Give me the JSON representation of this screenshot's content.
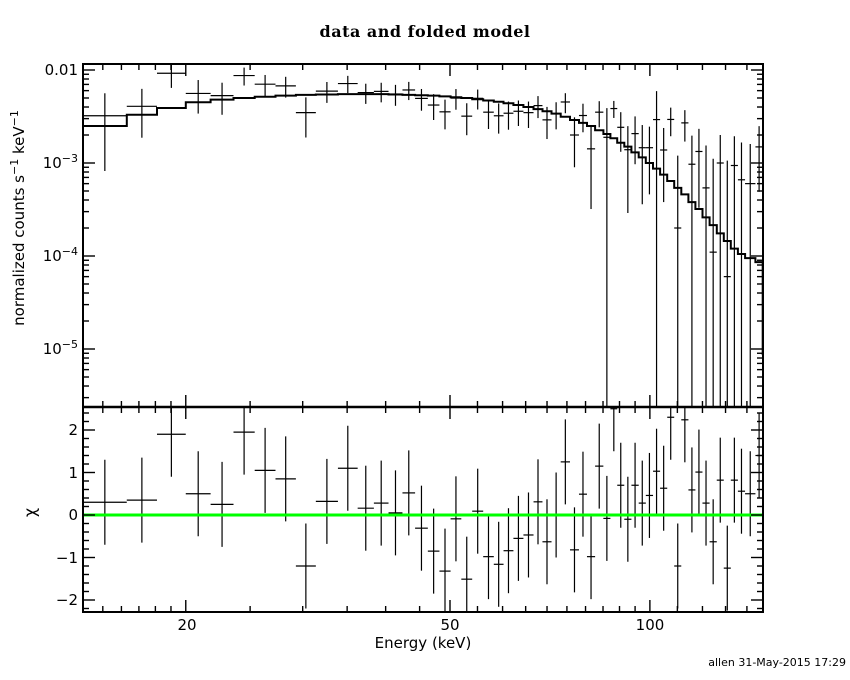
{
  "title": "data and folded model",
  "footer": {
    "credit": "allen 31-May-2015 17:29"
  },
  "colors": {
    "foreground": "#000000",
    "background": "#ffffff",
    "model_line": "#000000",
    "zero_line": "#00ff00"
  },
  "axes": {
    "x_label": "Energy (keV)",
    "x_tick_labels": [
      "20",
      "50",
      "100"
    ],
    "y1_label": {
      "part1": "normalized counts s",
      "sup1": "−1",
      "part2": " keV",
      "sup2": "−1"
    },
    "y1_tick_labels": [
      {
        "base": "0.01",
        "exp": ""
      },
      {
        "base": "10",
        "exp": "−3"
      },
      {
        "base": "10",
        "exp": "−4"
      },
      {
        "base": "10",
        "exp": "−5"
      }
    ],
    "y2_label": "χ",
    "y2_tick_labels": [
      "2",
      "1",
      "0",
      "−1",
      "−2"
    ]
  },
  "chart_data": [
    {
      "type": "scatter",
      "name": "data and folded model",
      "x_scale": "log",
      "y_scale": "log",
      "xlabel": "Energy (keV)",
      "ylabel": "normalized counts s^-1 keV^-1",
      "xlim": [
        14.0,
        147.9
      ],
      "ylim": [
        2.4e-06,
        0.0113
      ],
      "x_ticks_major": [
        20,
        50,
        100
      ],
      "x_ticks_minor": [
        15,
        16,
        17,
        18,
        19,
        25,
        30,
        35,
        40,
        45,
        55,
        60,
        65,
        70,
        75,
        80,
        85,
        90,
        95,
        110,
        120,
        130,
        140
      ],
      "y_ticks_major": [
        0.01,
        0.001,
        0.0001,
        1e-05
      ],
      "y_minor_mantissas": [
        2,
        3,
        4,
        5,
        6,
        7,
        8,
        9
      ],
      "legend": "off",
      "grid": "off",
      "series": [
        {
          "name": "data",
          "style": "crosses-with-errors"
        },
        {
          "name": "folded model",
          "style": "stepped-histogram"
        }
      ],
      "model_end_drop_to": 8.6e-06,
      "bins": {
        "e_lo": [
          14.0,
          16.3,
          18.1,
          20.0,
          21.8,
          23.6,
          25.4,
          27.3,
          29.3,
          31.4,
          33.9,
          36.3,
          38.4,
          40.4,
          42.4,
          44.3,
          46.3,
          48.2,
          50.1,
          52.0,
          54.0,
          56.1,
          58.2,
          60.2,
          62.3,
          64.5,
          66.8,
          68.9,
          71.1,
          73.4,
          75.8,
          78.2,
          80.4,
          82.7,
          85.1,
          87.2,
          89.3,
          91.5,
          93.8,
          96.2,
          98.6,
          101.1,
          103.6,
          106.2,
          108.8,
          111.5,
          114.3,
          117.1,
          120.0,
          123.0,
          126.1,
          129.2,
          132.4,
          135.7,
          139.1,
          144.2
        ],
        "e_hi": [
          16.3,
          18.1,
          20.0,
          21.8,
          23.6,
          25.4,
          27.3,
          29.3,
          31.4,
          33.9,
          36.3,
          38.4,
          40.4,
          42.4,
          44.3,
          46.3,
          48.2,
          50.1,
          52.0,
          54.0,
          56.1,
          58.2,
          60.2,
          62.3,
          64.5,
          66.8,
          68.9,
          71.1,
          73.4,
          75.8,
          78.2,
          80.4,
          82.7,
          85.1,
          87.2,
          89.3,
          91.5,
          93.8,
          96.2,
          98.6,
          101.1,
          103.6,
          106.2,
          108.8,
          111.5,
          114.3,
          117.1,
          120.0,
          123.0,
          126.1,
          129.2,
          132.4,
          135.7,
          139.1,
          144.2,
          147.9
        ],
        "rate": [
          0.00322,
          0.00407,
          0.00922,
          0.0056,
          0.0053,
          0.00871,
          0.00704,
          0.00675,
          0.00348,
          0.00593,
          0.00715,
          0.00572,
          0.00589,
          0.00552,
          0.0061,
          0.00495,
          0.0042,
          0.00355,
          0.00499,
          0.00319,
          0.00496,
          0.00352,
          0.00322,
          0.00343,
          0.0036,
          0.00348,
          0.00414,
          0.00291,
          0.0034,
          0.00453,
          0.002,
          0.00324,
          0.00142,
          0.00352,
          0.00189,
          0.00385,
          0.00242,
          0.00139,
          0.00207,
          0.00146,
          0.00146,
          0.00293,
          0.00138,
          0.00294,
          0.0002,
          0.0027,
          0.00097,
          0.00133,
          0.00054,
          0.00011,
          0.001,
          6e-05,
          0.00094,
          0.00066,
          0.0006,
          0.00149
        ],
        "rate_err": [
          0.0024,
          0.0022,
          0.0028,
          0.0022,
          0.002,
          0.0019,
          0.0018,
          0.0017,
          0.0016,
          0.0015,
          0.0015,
          0.0014,
          0.0014,
          0.0014,
          0.00135,
          0.0013,
          0.0013,
          0.00125,
          0.00125,
          0.0012,
          0.0012,
          0.0012,
          0.00115,
          0.00115,
          0.0011,
          0.0011,
          0.0011,
          0.0011,
          0.0011,
          0.0011,
          0.0011,
          0.0011,
          0.0011,
          0.0011,
          0.002,
          0.0008,
          0.0011,
          0.0011,
          0.0011,
          0.0011,
          0.001,
          0.003,
          0.001,
          0.001,
          0.001,
          0.001,
          0.001,
          0.001,
          0.001,
          0.001,
          0.001,
          0.001,
          0.001,
          0.001,
          0.001,
          0.001
        ],
        "model": [
          0.0025,
          0.0033,
          0.0039,
          0.0045,
          0.0048,
          0.005,
          0.00515,
          0.0053,
          0.0054,
          0.00545,
          0.0055,
          0.0055,
          0.0055,
          0.00545,
          0.0054,
          0.00535,
          0.0053,
          0.0052,
          0.0051,
          0.005,
          0.00485,
          0.0047,
          0.00455,
          0.0044,
          0.0042,
          0.004,
          0.0038,
          0.0036,
          0.0034,
          0.00315,
          0.0029,
          0.0027,
          0.0025,
          0.00225,
          0.00205,
          0.00185,
          0.00165,
          0.0015,
          0.0013,
          0.00115,
          0.001,
          0.00087,
          0.00075,
          0.00064,
          0.00054,
          0.00046,
          0.00038,
          0.00032,
          0.00026,
          0.000215,
          0.000175,
          0.000145,
          0.00012,
          0.000105,
          9.5e-05,
          8.6e-05
        ]
      }
    },
    {
      "type": "scatter",
      "name": "residuals",
      "x_scale": "log",
      "xlabel": "Energy (keV)",
      "ylabel": "χ",
      "xlim": [
        14.0,
        147.9
      ],
      "ylim": [
        -2.28,
        2.54
      ],
      "y_ticks_major": [
        -2,
        -1,
        0,
        1,
        2
      ],
      "y_minor_step": 0.2,
      "zero_line_value": 0,
      "zero_line_color": "#00ff00",
      "energy_bins": "same as chart 0",
      "chi": [
        0.3,
        0.35,
        1.9,
        0.5,
        0.25,
        1.95,
        1.05,
        0.85,
        -1.2,
        0.32,
        1.1,
        0.16,
        0.28,
        0.05,
        0.52,
        -0.31,
        -0.85,
        -1.32,
        -0.09,
        -1.51,
        0.09,
        -0.98,
        -1.16,
        -0.84,
        -0.55,
        -0.47,
        0.31,
        -0.63,
        0.0,
        1.25,
        -0.82,
        0.49,
        -0.98,
        1.15,
        -0.08,
        2.5,
        0.7,
        -0.1,
        0.7,
        0.28,
        0.46,
        1.03,
        0.63,
        2.3,
        -1.2,
        2.24,
        0.59,
        1.01,
        0.28,
        -0.63,
        0.82,
        -1.25,
        0.82,
        0.56,
        0.5,
        1.4
      ],
      "chi_err": 1.0
    }
  ]
}
